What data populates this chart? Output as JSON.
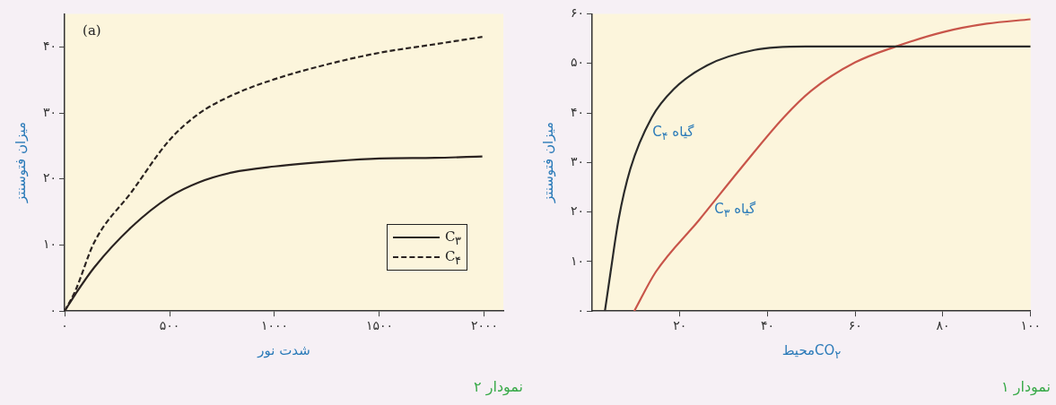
{
  "chart_data": [
    {
      "type": "line",
      "title": "نمودار ۱",
      "xlabel": "CO$_{۲}$محیط",
      "ylabel": "میزان فتوسنتز",
      "xlim": [
        0,
        100
      ],
      "ylim": [
        0,
        60
      ],
      "grid": false,
      "legend": false,
      "marker": "none",
      "xticks": [
        {
          "value": 20,
          "label": "۲۰"
        },
        {
          "value": 40,
          "label": "۴۰"
        },
        {
          "value": 60,
          "label": "۶۰"
        },
        {
          "value": 80,
          "label": "۸۰"
        },
        {
          "value": 100,
          "label": "۱۰۰"
        }
      ],
      "yticks": [
        {
          "value": 0,
          "label": "۰"
        },
        {
          "value": 10,
          "label": "۱۰"
        },
        {
          "value": 20,
          "label": "۲۰"
        },
        {
          "value": 30,
          "label": "۳۰"
        },
        {
          "value": 40,
          "label": "۴۰"
        },
        {
          "value": 50,
          "label": "۵۰"
        },
        {
          "value": 60,
          "label": "۶۰"
        }
      ],
      "series": [
        {
          "name": "گیاه C$_{۴}$",
          "color": "#2b2b2b",
          "line_style": "solid",
          "x": [
            2.9,
            4.2,
            6,
            8.7,
            13.6,
            18.6,
            26.2,
            37,
            48.7,
            60,
            80,
            100
          ],
          "values": [
            0,
            7.9,
            18.4,
            28.7,
            39.1,
            44.8,
            49.6,
            52.7,
            53.4,
            53.4,
            53.4,
            53.4
          ]
        },
        {
          "name": "گیاه C$_{۳}$",
          "color": "#c8554a",
          "line_style": "solid",
          "x": [
            9.6,
            14.5,
            24.4,
            33.8,
            43.7,
            50,
            60,
            69.3,
            80,
            90,
            100
          ],
          "values": [
            0,
            7.9,
            18.4,
            28.7,
            39.1,
            44.5,
            50.2,
            53.4,
            56.3,
            58,
            58.9
          ]
        }
      ]
    },
    {
      "type": "line",
      "title": "نمودار ۲",
      "xlabel": "شدت نور",
      "ylabel": "میزان فتوسنتز",
      "xlim": [
        0,
        2090
      ],
      "ylim": [
        0,
        45
      ],
      "grid": false,
      "legend": "bottom right",
      "marker": "none",
      "xticks": [
        {
          "value": 0,
          "label": "۰"
        },
        {
          "value": 500,
          "label": "۵۰۰"
        },
        {
          "value": 1000,
          "label": "۱۰۰۰"
        },
        {
          "value": 1500,
          "label": "۱۵۰۰"
        },
        {
          "value": 2000,
          "label": "۲۰۰۰"
        }
      ],
      "yticks": [
        {
          "value": 0,
          "label": "۰"
        },
        {
          "value": 10,
          "label": "۱۰"
        },
        {
          "value": 20,
          "label": "۲۰"
        },
        {
          "value": 30,
          "label": "۳۰"
        },
        {
          "value": 40,
          "label": "۴۰"
        }
      ],
      "series": [
        {
          "name": "C$_{۳}$",
          "color": "#2b2321",
          "line_style": "solid",
          "x": [
            0,
            50,
            141,
            318,
            500,
            640,
            800,
            1000,
            1283,
            1500,
            1765,
            1990
          ],
          "values": [
            0,
            2.5,
            6.6,
            12.7,
            17.3,
            19.5,
            21,
            21.9,
            22.7,
            23.1,
            23.2,
            23.4
          ]
        },
        {
          "name": "C$_{۴}$",
          "color": "#2b2321",
          "line_style": "dashed",
          "x": [
            0,
            50,
            141,
            318,
            500,
            640,
            800,
            1000,
            1283,
            1500,
            1765,
            1990
          ],
          "values": [
            0,
            3,
            10.4,
            18,
            25.9,
            29.9,
            32.7,
            35.1,
            37.6,
            39.1,
            40.4,
            41.5
          ]
        }
      ],
      "annotations": [
        "(a)"
      ]
    }
  ]
}
